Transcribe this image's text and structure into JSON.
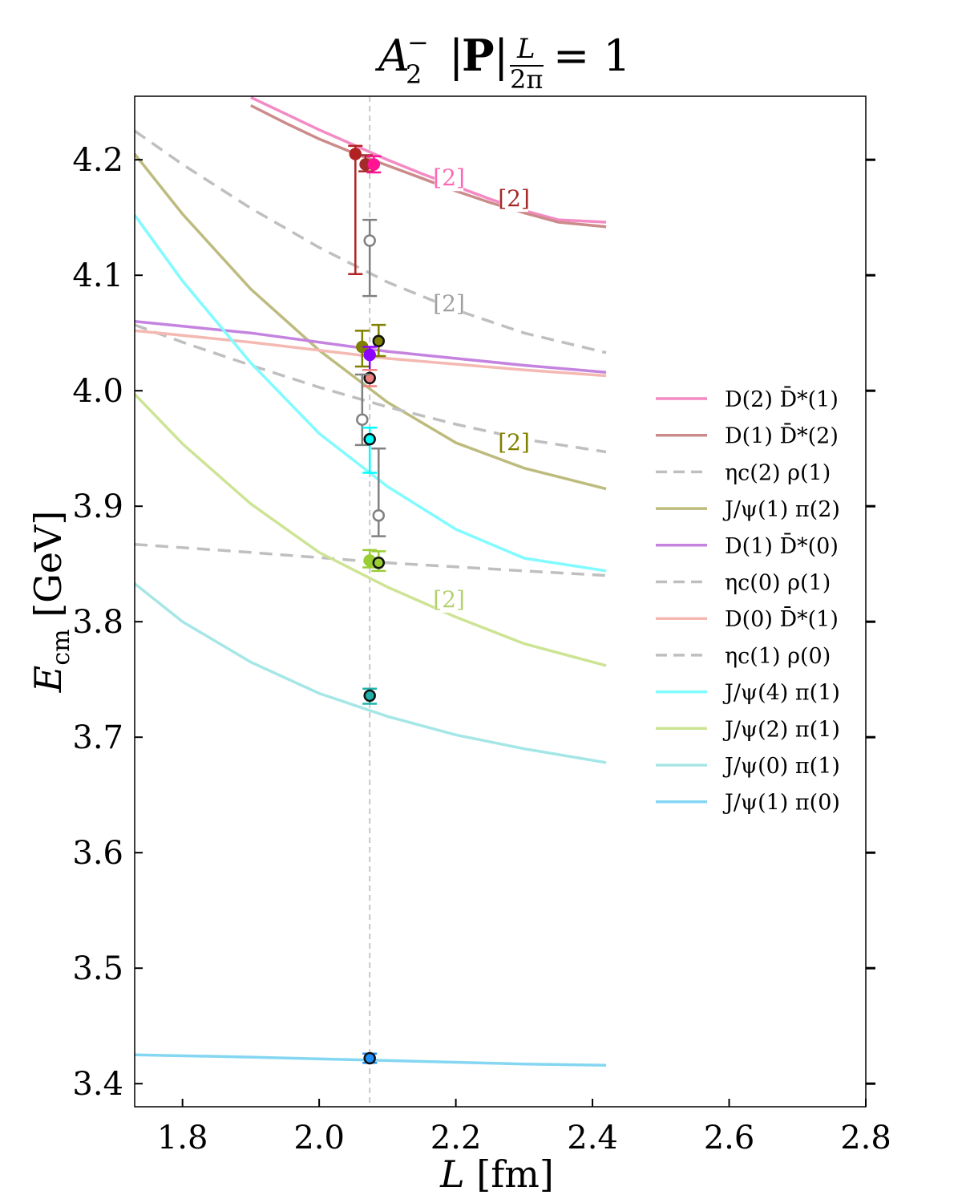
{
  "chart_data": {
    "type": "line",
    "title": "A₂⁻ |P| L/2π = 1",
    "xlabel": "L [fm]",
    "ylabel": "E_cm [GeV]",
    "xlim": [
      1.73,
      2.8
    ],
    "ylim": [
      3.38,
      4.255
    ],
    "xticks": [
      "1.8",
      "2.0",
      "2.2",
      "2.4",
      "2.6",
      "2.8"
    ],
    "yticks": [
      "3.4",
      "3.5",
      "3.6",
      "3.7",
      "3.8",
      "3.9",
      "4.0",
      "4.1",
      "4.2"
    ],
    "grid": false,
    "legend_position": "right",
    "reference_L": 2.074,
    "series": [
      {
        "name": "D(2) D̄*(1)",
        "color": "#f48ac4",
        "dash": false,
        "x": [
          1.9,
          1.95,
          2.0,
          2.05,
          2.1,
          2.15,
          2.2,
          2.25,
          2.3,
          2.35,
          2.42
        ],
        "y": [
          4.254,
          4.24,
          4.226,
          4.213,
          4.2,
          4.188,
          4.177,
          4.166,
          4.156,
          4.148,
          4.146
        ]
      },
      {
        "name": "D(1) D̄*(2)",
        "color": "#cc8b8b",
        "dash": false,
        "x": [
          1.9,
          1.95,
          2.0,
          2.05,
          2.1,
          2.15,
          2.2,
          2.25,
          2.3,
          2.35,
          2.42
        ],
        "y": [
          4.247,
          4.232,
          4.218,
          4.206,
          4.195,
          4.184,
          4.173,
          4.163,
          4.154,
          4.146,
          4.142
        ]
      },
      {
        "name": "ηc(2) ρ(1)",
        "color": "#bfbfbf",
        "dash": true,
        "x": [
          1.73,
          1.8,
          1.9,
          2.0,
          2.1,
          2.2,
          2.3,
          2.42
        ],
        "y": [
          4.225,
          4.196,
          4.158,
          4.124,
          4.094,
          4.07,
          4.05,
          4.033
        ]
      },
      {
        "name": "J/ψ(1) π(2)",
        "color": "#bdbb7e",
        "dash": false,
        "x": [
          1.73,
          1.8,
          1.9,
          2.0,
          2.1,
          2.2,
          2.3,
          2.42
        ],
        "y": [
          4.205,
          4.153,
          4.088,
          4.035,
          3.99,
          3.955,
          3.933,
          3.915
        ]
      },
      {
        "name": "D(1) D̄*(0)",
        "color": "#c583e0",
        "dash": false,
        "x": [
          1.73,
          1.9,
          2.1,
          2.3,
          2.42
        ],
        "y": [
          4.06,
          4.05,
          4.034,
          4.022,
          4.016
        ]
      },
      {
        "name": "ηc(0) ρ(1)",
        "color": "#bfbfbf",
        "dash": true,
        "x": [
          1.73,
          1.8,
          1.9,
          2.0,
          2.1,
          2.2,
          2.3,
          2.42
        ],
        "y": [
          4.057,
          4.042,
          4.022,
          4.003,
          3.986,
          3.971,
          3.958,
          3.947
        ]
      },
      {
        "name": "D(0) D̄*(1)",
        "color": "#f4b9b2",
        "dash": false,
        "x": [
          1.73,
          1.9,
          2.1,
          2.3,
          2.42
        ],
        "y": [
          4.052,
          4.042,
          4.028,
          4.018,
          4.013
        ]
      },
      {
        "name": "ηc(1) ρ(0)",
        "color": "#bfbfbf",
        "dash": true,
        "x": [
          1.73,
          1.9,
          2.1,
          2.3,
          2.42
        ],
        "y": [
          3.867,
          3.86,
          3.851,
          3.844,
          3.84
        ]
      },
      {
        "name": "J/ψ(4) π(1)",
        "color": "#80fbff",
        "dash": false,
        "x": [
          1.73,
          1.8,
          1.9,
          2.0,
          2.1,
          2.2,
          2.3,
          2.42
        ],
        "y": [
          4.152,
          4.095,
          4.024,
          3.963,
          3.917,
          3.88,
          3.855,
          3.844
        ]
      },
      {
        "name": "J/ψ(2) π(1)",
        "color": "#cde494",
        "dash": false,
        "x": [
          1.73,
          1.8,
          1.9,
          2.0,
          2.1,
          2.2,
          2.3,
          2.42
        ],
        "y": [
          3.997,
          3.954,
          3.902,
          3.86,
          3.83,
          3.804,
          3.781,
          3.762
        ]
      },
      {
        "name": "J/ψ(0) π(1)",
        "color": "#a5e6e6",
        "dash": false,
        "x": [
          1.73,
          1.8,
          1.9,
          2.0,
          2.1,
          2.2,
          2.3,
          2.42
        ],
        "y": [
          3.833,
          3.8,
          3.765,
          3.738,
          3.718,
          3.702,
          3.69,
          3.678
        ]
      },
      {
        "name": "J/ψ(1) π(0)",
        "color": "#84d6f2",
        "dash": false,
        "x": [
          1.73,
          1.9,
          2.1,
          2.3,
          2.42
        ],
        "y": [
          3.425,
          3.423,
          3.42,
          3.417,
          3.416
        ]
      }
    ],
    "points": [
      {
        "x": 2.053,
        "y": 4.205,
        "ylo": 4.101,
        "yhi": 4.212,
        "color": "#b22222",
        "filled": true
      },
      {
        "x": 2.068,
        "y": 4.196,
        "ylo": 4.19,
        "yhi": 4.204,
        "color": "#a52a2a",
        "filled": true
      },
      {
        "x": 2.08,
        "y": 4.196,
        "ylo": 4.189,
        "yhi": 4.203,
        "color": "#ff1493",
        "filled": true
      },
      {
        "x": 2.074,
        "y": 4.13,
        "ylo": 4.082,
        "yhi": 4.148,
        "color": "#808080",
        "filled": false
      },
      {
        "x": 2.063,
        "y": 4.038,
        "ylo": 4.021,
        "yhi": 4.052,
        "color": "#808000",
        "filled": true
      },
      {
        "x": 2.087,
        "y": 4.043,
        "ylo": 4.03,
        "yhi": 4.057,
        "color": "#808000",
        "filled": true,
        "edge": "#111111"
      },
      {
        "x": 2.074,
        "y": 4.031,
        "ylo": 4.018,
        "yhi": 4.038,
        "color": "#8b00ff",
        "filled": true
      },
      {
        "x": 2.074,
        "y": 4.011,
        "ylo": 4.004,
        "yhi": 4.018,
        "color": "#f08080",
        "filled": true,
        "edge": "#111111"
      },
      {
        "x": 2.063,
        "y": 3.975,
        "ylo": 3.953,
        "yhi": 4.014,
        "color": "#808080",
        "filled": false
      },
      {
        "x": 2.074,
        "y": 3.958,
        "ylo": 3.929,
        "yhi": 3.968,
        "color": "#00ffff",
        "filled": true,
        "edge": "#111111"
      },
      {
        "x": 2.087,
        "y": 3.892,
        "ylo": 3.874,
        "yhi": 3.95,
        "color": "#808080",
        "filled": false
      },
      {
        "x": 2.074,
        "y": 3.853,
        "ylo": 3.847,
        "yhi": 3.862,
        "color": "#9acd32",
        "filled": true
      },
      {
        "x": 2.087,
        "y": 3.851,
        "ylo": 3.844,
        "yhi": 3.861,
        "color": "#9acd32",
        "filled": true,
        "edge": "#111111"
      },
      {
        "x": 2.074,
        "y": 3.736,
        "ylo": 3.729,
        "yhi": 3.742,
        "color": "#20b2aa",
        "filled": true,
        "edge": "#111111"
      },
      {
        "x": 2.074,
        "y": 3.422,
        "ylo": 3.418,
        "yhi": 3.426,
        "color": "#1e90ff",
        "filled": true,
        "edge": "#111111"
      }
    ],
    "annotations": [
      {
        "text": "[2]",
        "x": 2.19,
        "y": 4.184,
        "color": "#ff69b4"
      },
      {
        "text": "[2]",
        "x": 2.285,
        "y": 4.166,
        "color": "#a52a2a"
      },
      {
        "text": "[2]",
        "x": 2.19,
        "y": 4.075,
        "color": "#a0a0a0"
      },
      {
        "text": "[2]",
        "x": 2.285,
        "y": 3.955,
        "color": "#808000"
      },
      {
        "text": "[2]",
        "x": 2.19,
        "y": 3.819,
        "color": "#b5d16e"
      }
    ]
  }
}
